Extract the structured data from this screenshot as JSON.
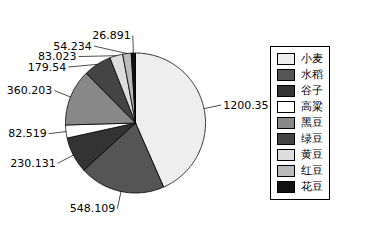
{
  "chart_data": {
    "type": "pie",
    "categories": [
      "小麦",
      "水稻",
      "谷子",
      "高粱",
      "黑豆",
      "绿豆",
      "黄豆",
      "红豆",
      "花豆"
    ],
    "values": [
      1200.35,
      548.109,
      230.131,
      82.519,
      360.203,
      179.54,
      83.023,
      54.234,
      26.891
    ],
    "colors": [
      "#eeeeee",
      "#555555",
      "#333333",
      "#ffffff",
      "#888888",
      "#444444",
      "#dddddd",
      "#bbbbbb",
      "#111111"
    ],
    "legend": "right",
    "data_labels": true
  }
}
